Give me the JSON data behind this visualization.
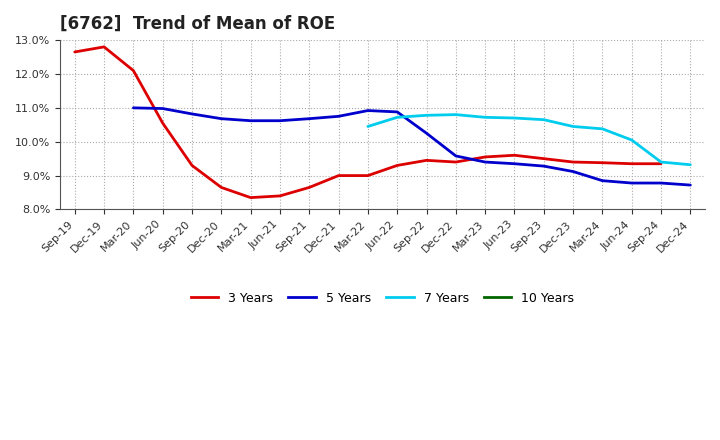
{
  "title": "[6762]  Trend of Mean of ROE",
  "x_labels": [
    "Sep-19",
    "Dec-19",
    "Mar-20",
    "Jun-20",
    "Sep-20",
    "Dec-20",
    "Mar-21",
    "Jun-21",
    "Sep-21",
    "Dec-21",
    "Mar-22",
    "Jun-22",
    "Sep-22",
    "Dec-22",
    "Mar-23",
    "Jun-23",
    "Sep-23",
    "Dec-23",
    "Mar-24",
    "Jun-24",
    "Sep-24",
    "Dec-24"
  ],
  "ylim": [
    0.08,
    0.13
  ],
  "yticks": [
    0.08,
    0.09,
    0.1,
    0.11,
    0.12,
    0.13
  ],
  "series": {
    "3 Years": {
      "color": "#dd0000",
      "data_x": [
        0,
        1,
        2,
        3,
        4,
        5,
        6,
        7,
        8,
        9,
        10,
        11,
        12,
        13,
        14,
        15,
        16,
        17,
        18,
        19,
        20
      ],
      "data_y": [
        0.1265,
        0.128,
        0.121,
        0.1055,
        0.093,
        0.0865,
        0.0835,
        0.084,
        0.0865,
        0.09,
        0.09,
        0.093,
        0.0945,
        0.094,
        0.0955,
        0.096,
        0.095,
        0.094,
        0.0938,
        0.0935,
        0.0935
      ]
    },
    "5 Years": {
      "color": "#0000cc",
      "data_x": [
        2,
        3,
        4,
        5,
        6,
        7,
        8,
        9,
        10,
        11,
        12,
        13,
        14,
        15,
        16,
        17,
        18,
        19,
        20,
        21
      ],
      "data_y": [
        0.11,
        0.1098,
        0.1082,
        0.1068,
        0.1062,
        0.1062,
        0.1068,
        0.1075,
        0.1092,
        0.1088,
        0.1025,
        0.0958,
        0.094,
        0.0935,
        0.0928,
        0.0912,
        0.0885,
        0.0878,
        0.0878,
        0.0872
      ]
    },
    "7 Years": {
      "color": "#00ccee",
      "data_x": [
        10,
        11,
        12,
        13,
        14,
        15,
        16,
        17,
        18,
        19,
        20,
        21
      ],
      "data_y": [
        0.1045,
        0.1072,
        0.1078,
        0.108,
        0.1072,
        0.107,
        0.1065,
        0.1045,
        0.1038,
        0.1005,
        0.094,
        0.0932
      ]
    },
    "10 Years": {
      "color": "#006600",
      "data_x": [],
      "data_y": []
    }
  },
  "background_color": "#ffffff",
  "plot_bg_color": "#ffffff",
  "grid_color": "#aaaaaa",
  "title_fontsize": 12,
  "legend_fontsize": 9,
  "tick_fontsize": 8
}
